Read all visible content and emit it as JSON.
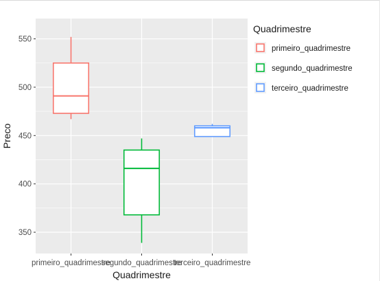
{
  "chart_data": {
    "type": "boxplot",
    "xlabel": "Quadrimestre",
    "ylabel": "Preco",
    "legend_title": "Quadrimestre",
    "legend_position": "right",
    "grid": true,
    "panel_background": "#ebebeb",
    "ylim": [
      328,
      571
    ],
    "y_ticks": [
      350,
      400,
      450,
      500,
      550
    ],
    "categories": [
      "primeiro_quadrimestre",
      "segundo_quadrimestre",
      "terceiro_quadrimestre"
    ],
    "series": [
      {
        "name": "primeiro_quadrimestre",
        "color": "#F8766D",
        "min": 467,
        "q1": 473,
        "median": 491,
        "q3": 525,
        "max": 552
      },
      {
        "name": "segundo_quadrimestre",
        "color": "#00BA38",
        "min": 339,
        "q1": 368,
        "median": 416,
        "q3": 435,
        "max": 447
      },
      {
        "name": "terceiro_quadrimestre",
        "color": "#619CFF",
        "min": 449,
        "q1": 449,
        "median": 458,
        "q3": 460,
        "max": 462
      }
    ]
  }
}
